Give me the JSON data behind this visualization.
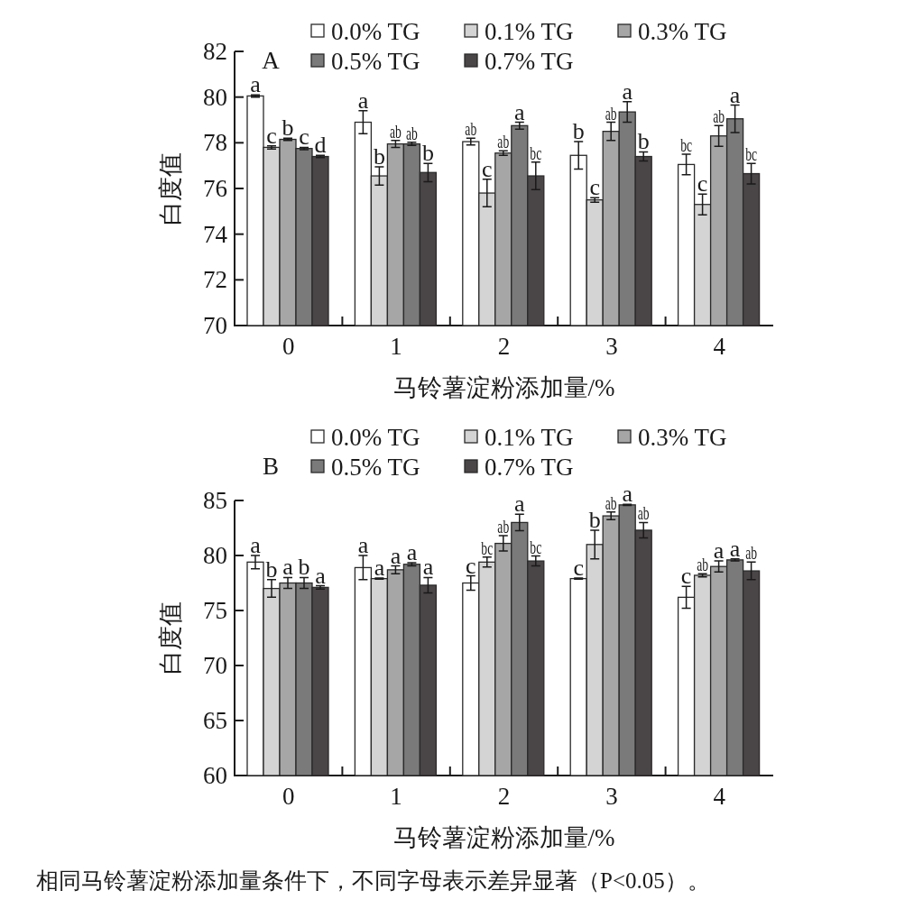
{
  "chart_data": [
    {
      "type": "bar",
      "title": "A",
      "xlabel": "马铃薯淀粉添加量/%",
      "ylabel": "白度值",
      "categories": [
        "0",
        "1",
        "2",
        "3",
        "4"
      ],
      "ylim": [
        70,
        82
      ],
      "yticks": [
        70,
        72,
        74,
        76,
        78,
        80,
        82
      ],
      "legend": "top",
      "series": [
        {
          "name": "0.0% TG",
          "color": "#ffffff",
          "values": [
            80.05,
            78.9,
            78.05,
            77.45,
            77.05
          ],
          "errors": [
            0.05,
            0.5,
            0.15,
            0.6,
            0.45
          ]
        },
        {
          "name": "0.1% TG",
          "color": "#d4d4d4",
          "values": [
            77.8,
            76.55,
            75.8,
            75.5,
            75.3
          ],
          "errors": [
            0.07,
            0.4,
            0.6,
            0.1,
            0.45
          ]
        },
        {
          "name": "0.3% TG",
          "color": "#a6a6a6",
          "values": [
            78.15,
            77.95,
            77.55,
            78.5,
            78.3
          ],
          "errors": [
            0.05,
            0.15,
            0.1,
            0.4,
            0.45
          ]
        },
        {
          "name": "0.5% TG",
          "color": "#7a7a7a",
          "values": [
            77.75,
            77.95,
            78.75,
            79.35,
            79.05
          ],
          "errors": [
            0.05,
            0.07,
            0.15,
            0.45,
            0.6
          ]
        },
        {
          "name": "0.7% TG",
          "color": "#4a4547",
          "values": [
            77.4,
            76.7,
            76.55,
            77.4,
            76.65
          ],
          "errors": [
            0.05,
            0.4,
            0.6,
            0.2,
            0.45
          ]
        }
      ],
      "annotations": [
        "a",
        "a",
        "ab",
        "b",
        "bc",
        "c",
        "b",
        "c",
        "c",
        "c",
        "b",
        "ab",
        "ab",
        "ab",
        "ab",
        "c",
        "ab",
        "a",
        "a",
        "a",
        "d",
        "b",
        "bc",
        "b",
        "bc"
      ]
    },
    {
      "type": "bar",
      "title": "B",
      "xlabel": "马铃薯淀粉添加量/%",
      "ylabel": "白度值",
      "categories": [
        "0",
        "1",
        "2",
        "3",
        "4"
      ],
      "ylim": [
        60,
        85
      ],
      "yticks": [
        60,
        65,
        70,
        75,
        80,
        85
      ],
      "legend": "top",
      "series": [
        {
          "name": "0.0% TG",
          "color": "#ffffff",
          "values": [
            79.4,
            78.9,
            77.5,
            77.9,
            76.2
          ],
          "errors": [
            0.6,
            1.1,
            0.65,
            0.05,
            1.0
          ]
        },
        {
          "name": "0.1% TG",
          "color": "#d4d4d4",
          "values": [
            77.0,
            77.9,
            79.4,
            81.0,
            78.2
          ],
          "errors": [
            0.8,
            0.05,
            0.45,
            1.3,
            0.15
          ]
        },
        {
          "name": "0.3% TG",
          "color": "#a6a6a6",
          "values": [
            77.5,
            78.7,
            81.1,
            83.6,
            79.0
          ],
          "errors": [
            0.5,
            0.35,
            0.7,
            0.35,
            0.5
          ]
        },
        {
          "name": "0.5% TG",
          "color": "#7a7a7a",
          "values": [
            77.5,
            79.2,
            83.0,
            84.6,
            79.6
          ],
          "errors": [
            0.5,
            0.15,
            0.75,
            0.05,
            0.1
          ]
        },
        {
          "name": "0.7% TG",
          "color": "#4a4547",
          "values": [
            77.1,
            77.3,
            79.5,
            82.3,
            78.6
          ],
          "errors": [
            0.15,
            0.7,
            0.45,
            0.7,
            0.8
          ]
        }
      ],
      "annotations": [
        "a",
        "a",
        "c",
        "c",
        "c",
        "b",
        "a",
        "bc",
        "b",
        "ab",
        "a",
        "a",
        "ab",
        "ab",
        "a",
        "b",
        "a",
        "a",
        "a",
        "a",
        "a",
        "a",
        "bc",
        "ab",
        "ab",
        "相同马铃薯淀粉添加量条件下，不同字母表示差异显著（P<0.05）。"
      ]
    }
  ]
}
